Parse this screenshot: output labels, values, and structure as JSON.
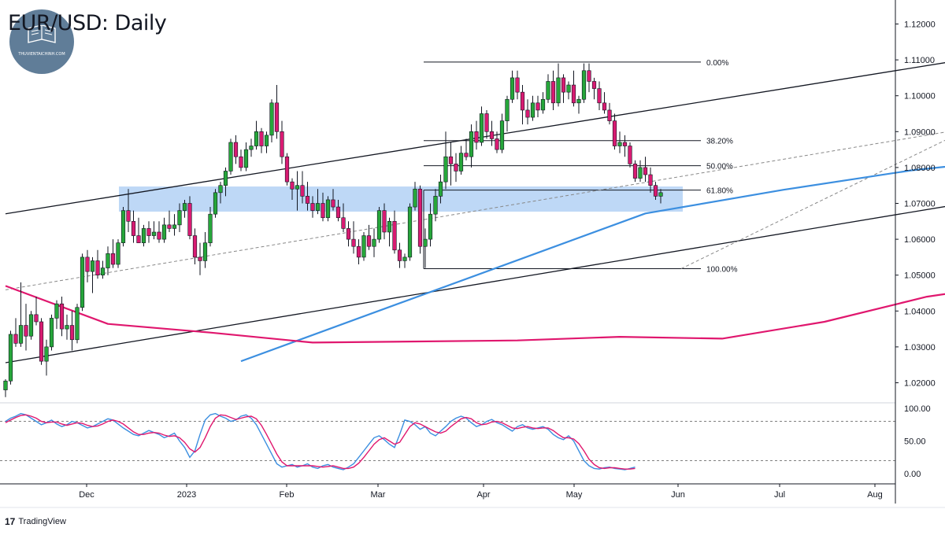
{
  "header": {
    "title": "EUR/USD: Daily"
  },
  "watermark": {
    "text": "THUVIENTAICHINH.COM",
    "color": "#4f6f8d"
  },
  "footer": {
    "brand": "TradingView"
  },
  "colors": {
    "up": "#26a63a",
    "down": "#d81b72",
    "wick": "#131722",
    "ma_fast": "#3c8fe0",
    "ma_slow": "#e0176e",
    "zone": "#b7d4f5",
    "stoch_k": "#3c8fe0",
    "stoch_d": "#e0176e"
  },
  "chart_data": [
    {
      "type": "candlestick",
      "title": "EUR/USD: Daily",
      "xlabel": "",
      "ylabel": "",
      "x_ticks": [
        "Dec",
        "2023",
        "Feb",
        "Mar",
        "Apr",
        "May",
        "Jun",
        "Jul",
        "Aug"
      ],
      "y_ticks": [
        "1.12000",
        "1.11000",
        "1.10000",
        "1.09000",
        "1.08000",
        "1.07000",
        "1.06000",
        "1.05000",
        "1.04000",
        "1.03000",
        "1.02000"
      ],
      "ylim": [
        1.0155,
        1.1235
      ],
      "grid": false,
      "fibonacci": {
        "levels": [
          {
            "label": "0.00%",
            "price": 1.1094
          },
          {
            "label": "38.20%",
            "price": 1.0875
          },
          {
            "label": "50.00%",
            "price": 1.0805
          },
          {
            "label": "61.80%",
            "price": 1.0737
          },
          {
            "label": "100.00%",
            "price": 1.0518
          }
        ]
      },
      "support_zone": {
        "low": 1.0677,
        "high": 1.0747
      },
      "candles": [
        [
          1.018,
          1.021,
          1.016,
          1.0205
        ],
        [
          1.0205,
          1.0345,
          1.0195,
          1.0335
        ],
        [
          1.0335,
          1.038,
          1.03,
          1.031
        ],
        [
          1.031,
          1.048,
          1.03,
          1.036
        ],
        [
          1.036,
          1.042,
          1.029,
          1.033
        ],
        [
          1.033,
          1.04,
          1.032,
          1.039
        ],
        [
          1.039,
          1.044,
          1.036,
          1.037
        ],
        [
          1.037,
          1.038,
          1.025,
          1.026
        ],
        [
          1.026,
          1.032,
          1.022,
          1.03
        ],
        [
          1.03,
          1.039,
          1.029,
          1.038
        ],
        [
          1.038,
          1.043,
          1.035,
          1.042
        ],
        [
          1.042,
          1.044,
          1.033,
          1.035
        ],
        [
          1.035,
          1.039,
          1.032,
          1.036
        ],
        [
          1.036,
          1.04,
          1.029,
          1.032
        ],
        [
          1.032,
          1.042,
          1.031,
          1.041
        ],
        [
          1.041,
          1.056,
          1.04,
          1.055
        ],
        [
          1.055,
          1.057,
          1.048,
          1.051
        ],
        [
          1.051,
          1.055,
          1.045,
          1.054
        ],
        [
          1.054,
          1.057,
          1.049,
          1.05
        ],
        [
          1.05,
          1.054,
          1.049,
          1.052
        ],
        [
          1.052,
          1.058,
          1.05,
          1.056
        ],
        [
          1.056,
          1.06,
          1.052,
          1.053
        ],
        [
          1.053,
          1.06,
          1.052,
          1.059
        ],
        [
          1.059,
          1.069,
          1.058,
          1.068
        ],
        [
          1.068,
          1.074,
          1.062,
          1.065
        ],
        [
          1.065,
          1.068,
          1.059,
          1.061
        ],
        [
          1.061,
          1.066,
          1.059,
          1.059
        ],
        [
          1.059,
          1.064,
          1.058,
          1.063
        ],
        [
          1.063,
          1.065,
          1.059,
          1.061
        ],
        [
          1.061,
          1.065,
          1.06,
          1.062
        ],
        [
          1.062,
          1.065,
          1.059,
          1.06
        ],
        [
          1.06,
          1.066,
          1.059,
          1.064
        ],
        [
          1.064,
          1.068,
          1.062,
          1.063
        ],
        [
          1.063,
          1.067,
          1.061,
          1.064
        ],
        [
          1.064,
          1.07,
          1.062,
          1.068
        ],
        [
          1.068,
          1.071,
          1.066,
          1.07
        ],
        [
          1.07,
          1.072,
          1.06,
          1.061
        ],
        [
          1.061,
          1.063,
          1.053,
          1.055
        ],
        [
          1.055,
          1.059,
          1.05,
          1.054
        ],
        [
          1.054,
          1.062,
          1.052,
          1.059
        ],
        [
          1.059,
          1.069,
          1.058,
          1.067
        ],
        [
          1.067,
          1.074,
          1.066,
          1.073
        ],
        [
          1.073,
          1.076,
          1.07,
          1.075
        ],
        [
          1.075,
          1.08,
          1.072,
          1.079
        ],
        [
          1.079,
          1.088,
          1.078,
          1.087
        ],
        [
          1.087,
          1.089,
          1.081,
          1.083
        ],
        [
          1.083,
          1.085,
          1.079,
          1.08
        ],
        [
          1.08,
          1.087,
          1.079,
          1.085
        ],
        [
          1.085,
          1.088,
          1.083,
          1.086
        ],
        [
          1.086,
          1.093,
          1.085,
          1.09
        ],
        [
          1.09,
          1.091,
          1.084,
          1.086
        ],
        [
          1.086,
          1.09,
          1.084,
          1.089
        ],
        [
          1.089,
          1.099,
          1.087,
          1.098
        ],
        [
          1.098,
          1.103,
          1.088,
          1.09
        ],
        [
          1.09,
          1.093,
          1.081,
          1.083
        ],
        [
          1.083,
          1.084,
          1.075,
          1.076
        ],
        [
          1.076,
          1.077,
          1.071,
          1.074
        ],
        [
          1.074,
          1.079,
          1.068,
          1.075
        ],
        [
          1.075,
          1.079,
          1.07,
          1.072
        ],
        [
          1.072,
          1.076,
          1.068,
          1.07
        ],
        [
          1.07,
          1.072,
          1.066,
          1.068
        ],
        [
          1.068,
          1.074,
          1.067,
          1.07
        ],
        [
          1.07,
          1.073,
          1.065,
          1.066
        ],
        [
          1.066,
          1.072,
          1.065,
          1.071
        ],
        [
          1.071,
          1.074,
          1.068,
          1.069
        ],
        [
          1.069,
          1.071,
          1.065,
          1.066
        ],
        [
          1.066,
          1.07,
          1.062,
          1.063
        ],
        [
          1.063,
          1.065,
          1.058,
          1.06
        ],
        [
          1.06,
          1.065,
          1.056,
          1.058
        ],
        [
          1.058,
          1.06,
          1.053,
          1.055
        ],
        [
          1.055,
          1.062,
          1.054,
          1.061
        ],
        [
          1.061,
          1.064,
          1.057,
          1.058
        ],
        [
          1.058,
          1.063,
          1.055,
          1.06
        ],
        [
          1.06,
          1.069,
          1.059,
          1.068
        ],
        [
          1.068,
          1.07,
          1.06,
          1.062
        ],
        [
          1.062,
          1.066,
          1.058,
          1.065
        ],
        [
          1.065,
          1.068,
          1.056,
          1.057
        ],
        [
          1.057,
          1.059,
          1.052,
          1.054
        ],
        [
          1.054,
          1.056,
          1.052,
          1.055
        ],
        [
          1.055,
          1.07,
          1.054,
          1.069
        ],
        [
          1.069,
          1.076,
          1.068,
          1.074
        ],
        [
          1.074,
          1.075,
          1.056,
          1.058
        ],
        [
          1.058,
          1.063,
          1.052,
          1.06
        ],
        [
          1.06,
          1.07,
          1.058,
          1.067
        ],
        [
          1.067,
          1.074,
          1.065,
          1.072
        ],
        [
          1.072,
          1.078,
          1.07,
          1.076
        ],
        [
          1.076,
          1.09,
          1.074,
          1.083
        ],
        [
          1.083,
          1.087,
          1.075,
          1.081
        ],
        [
          1.081,
          1.084,
          1.076,
          1.079
        ],
        [
          1.079,
          1.086,
          1.078,
          1.084
        ],
        [
          1.084,
          1.088,
          1.082,
          1.083
        ],
        [
          1.083,
          1.092,
          1.08,
          1.09
        ],
        [
          1.09,
          1.093,
          1.085,
          1.087
        ],
        [
          1.087,
          1.097,
          1.086,
          1.095
        ],
        [
          1.095,
          1.096,
          1.088,
          1.09
        ],
        [
          1.09,
          1.093,
          1.086,
          1.088
        ],
        [
          1.088,
          1.09,
          1.084,
          1.085
        ],
        [
          1.085,
          1.095,
          1.084,
          1.093
        ],
        [
          1.093,
          1.1,
          1.09,
          1.099
        ],
        [
          1.099,
          1.107,
          1.098,
          1.105
        ],
        [
          1.105,
          1.107,
          1.099,
          1.101
        ],
        [
          1.101,
          1.103,
          1.092,
          1.096
        ],
        [
          1.096,
          1.099,
          1.092,
          1.094
        ],
        [
          1.094,
          1.1,
          1.093,
          1.098
        ],
        [
          1.098,
          1.1,
          1.094,
          1.096
        ],
        [
          1.096,
          1.101,
          1.095,
          1.099
        ],
        [
          1.099,
          1.106,
          1.098,
          1.104
        ],
        [
          1.104,
          1.107,
          1.096,
          1.098
        ],
        [
          1.098,
          1.109,
          1.097,
          1.105
        ],
        [
          1.105,
          1.106,
          1.098,
          1.101
        ],
        [
          1.101,
          1.104,
          1.099,
          1.103
        ],
        [
          1.103,
          1.107,
          1.097,
          1.098
        ],
        [
          1.098,
          1.1,
          1.095,
          1.099
        ],
        [
          1.099,
          1.109,
          1.098,
          1.107
        ],
        [
          1.107,
          1.109,
          1.101,
          1.104
        ],
        [
          1.104,
          1.105,
          1.099,
          1.102
        ],
        [
          1.102,
          1.104,
          1.096,
          1.098
        ],
        [
          1.098,
          1.101,
          1.095,
          1.096
        ],
        [
          1.096,
          1.098,
          1.092,
          1.093
        ],
        [
          1.093,
          1.095,
          1.085,
          1.086
        ],
        [
          1.086,
          1.09,
          1.084,
          1.087
        ],
        [
          1.087,
          1.089,
          1.083,
          1.086
        ],
        [
          1.086,
          1.087,
          1.08,
          1.081
        ],
        [
          1.081,
          1.082,
          1.076,
          1.077
        ],
        [
          1.077,
          1.082,
          1.076,
          1.08
        ],
        [
          1.08,
          1.083,
          1.076,
          1.078
        ],
        [
          1.078,
          1.08,
          1.073,
          1.075
        ],
        [
          1.075,
          1.076,
          1.071,
          1.072
        ],
        [
          1.072,
          1.074,
          1.07,
          1.073
        ]
      ],
      "series": [
        {
          "name": "MA fast",
          "x": [
            46,
            125,
            152,
            177,
            189,
            202
          ],
          "values": [
            1.026,
            1.0672,
            1.0738,
            1.0792,
            1.081,
            1.0815
          ]
        },
        {
          "name": "MA slow",
          "x": [
            0,
            20,
            40,
            60,
            100,
            120,
            140,
            160,
            180,
            202
          ],
          "values": [
            1.047,
            1.0364,
            1.034,
            1.0312,
            1.0318,
            1.0328,
            1.0323,
            1.037,
            1.044,
            1.0485
          ]
        }
      ],
      "trendlines": [
        {
          "x1": 0,
          "y1": 1.0671,
          "x2": 248,
          "y2": 1.124
        },
        {
          "x1": 0,
          "y1": 1.0256,
          "x2": 248,
          "y2": 1.0844
        },
        {
          "x1": 0,
          "y1": 1.0459,
          "x2": 248,
          "y2": 1.1053,
          "dashed": true
        },
        {
          "x1": 132,
          "y1": 1.0518,
          "x2": 215,
          "y2": 1.1094,
          "dashed": true
        }
      ]
    },
    {
      "type": "line",
      "title": "",
      "y_ticks": [
        "100.00",
        "50.00",
        "0.00"
      ],
      "ylim": [
        -5,
        105
      ],
      "levels": [
        80,
        20
      ],
      "series": [
        {
          "name": "%K",
          "values": [
            80,
            85,
            88,
            92,
            90,
            85,
            80,
            75,
            78,
            82,
            76,
            72,
            75,
            80,
            78,
            74,
            70,
            72,
            76,
            80,
            84,
            82,
            76,
            70,
            65,
            60,
            58,
            62,
            66,
            63,
            60,
            55,
            58,
            62,
            50,
            40,
            25,
            35,
            60,
            82,
            90,
            92,
            88,
            85,
            80,
            82,
            88,
            90,
            85,
            75,
            60,
            45,
            30,
            15,
            10,
            12,
            14,
            10,
            12,
            15,
            10,
            8,
            12,
            14,
            10,
            8,
            6,
            10,
            15,
            25,
            35,
            45,
            55,
            58,
            52,
            45,
            40,
            60,
            82,
            80,
            75,
            68,
            72,
            62,
            58,
            65,
            72,
            80,
            85,
            88,
            85,
            78,
            72,
            75,
            80,
            83,
            78,
            75,
            70,
            65,
            72,
            75,
            70,
            68,
            70,
            72,
            68,
            60,
            55,
            52,
            58,
            50,
            35,
            20,
            12,
            8,
            7,
            9,
            10,
            8,
            7,
            6,
            8,
            10
          ]
        },
        {
          "name": "%D",
          "values": [
            78,
            82,
            86,
            89,
            90,
            88,
            85,
            80,
            78,
            79,
            79,
            76,
            74,
            76,
            78,
            77,
            74,
            72,
            73,
            76,
            80,
            82,
            80,
            76,
            70,
            64,
            60,
            60,
            62,
            63,
            62,
            59,
            57,
            58,
            55,
            48,
            38,
            33,
            40,
            55,
            72,
            85,
            90,
            89,
            86,
            83,
            85,
            87,
            88,
            84,
            74,
            60,
            45,
            30,
            18,
            12,
            12,
            12,
            12,
            12,
            12,
            11,
            10,
            11,
            12,
            10,
            8,
            8,
            10,
            16,
            25,
            35,
            45,
            52,
            55,
            50,
            45,
            48,
            60,
            72,
            78,
            76,
            72,
            68,
            64,
            62,
            65,
            72,
            78,
            84,
            86,
            84,
            78,
            75,
            76,
            79,
            80,
            78,
            74,
            70,
            69,
            71,
            72,
            70,
            69,
            70,
            70,
            66,
            60,
            55,
            55,
            53,
            46,
            35,
            22,
            14,
            9,
            8,
            9,
            9,
            8,
            7,
            7,
            8
          ]
        }
      ]
    }
  ]
}
